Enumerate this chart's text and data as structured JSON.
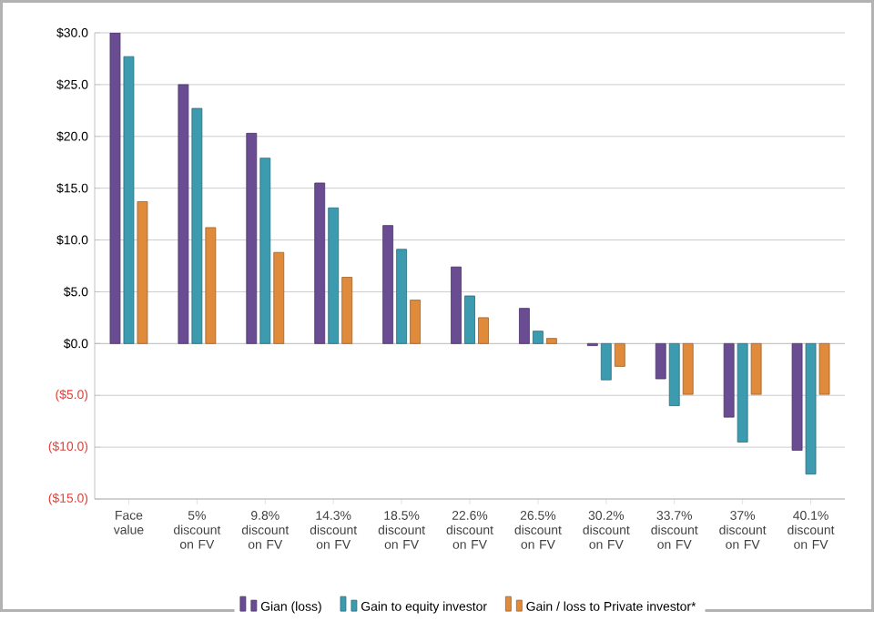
{
  "chart_data": {
    "type": "bar",
    "categories": [
      "Face value",
      "5% discount on FV",
      "9.8% discount on FV",
      "14.3% discount on FV",
      "18.5% discount on FV",
      "22.6% discount on FV",
      "26.5% discount on FV",
      "30.2% discount on FV",
      "33.7% discount on FV",
      "37% discount on FV",
      "40.1% discount on FV"
    ],
    "series": [
      {
        "name": "Gian (loss)",
        "color": "#6a4c93",
        "values": [
          30.0,
          25.0,
          20.3,
          15.5,
          11.4,
          7.4,
          3.4,
          -0.2,
          -3.4,
          -7.1,
          -10.3
        ]
      },
      {
        "name": "Gain to equity investor",
        "color": "#3d9bb0",
        "values": [
          27.7,
          22.7,
          17.9,
          13.1,
          9.1,
          4.6,
          1.2,
          -3.5,
          -6.0,
          -9.5,
          -12.6
        ]
      },
      {
        "name": "Gain / loss to Private investor*",
        "color": "#e08a3c",
        "values": [
          13.7,
          11.2,
          8.8,
          6.4,
          4.2,
          2.5,
          0.5,
          -2.2,
          -4.9,
          -4.9,
          -4.9
        ]
      }
    ],
    "ylim": [
      -15,
      30
    ],
    "yticks": [
      {
        "value": -15,
        "label": "($15.0)"
      },
      {
        "value": -10,
        "label": "($10.0)"
      },
      {
        "value": -5,
        "label": "($5.0)"
      },
      {
        "value": 0,
        "label": "$0.0"
      },
      {
        "value": 5,
        "label": "$5.0"
      },
      {
        "value": 10,
        "label": "$10.0"
      },
      {
        "value": 15,
        "label": "$15.0"
      },
      {
        "value": 20,
        "label": "$20.0"
      },
      {
        "value": 25,
        "label": "$25.0"
      },
      {
        "value": 30,
        "label": "$30.0"
      }
    ],
    "grid": "y",
    "legend": "bottom"
  }
}
